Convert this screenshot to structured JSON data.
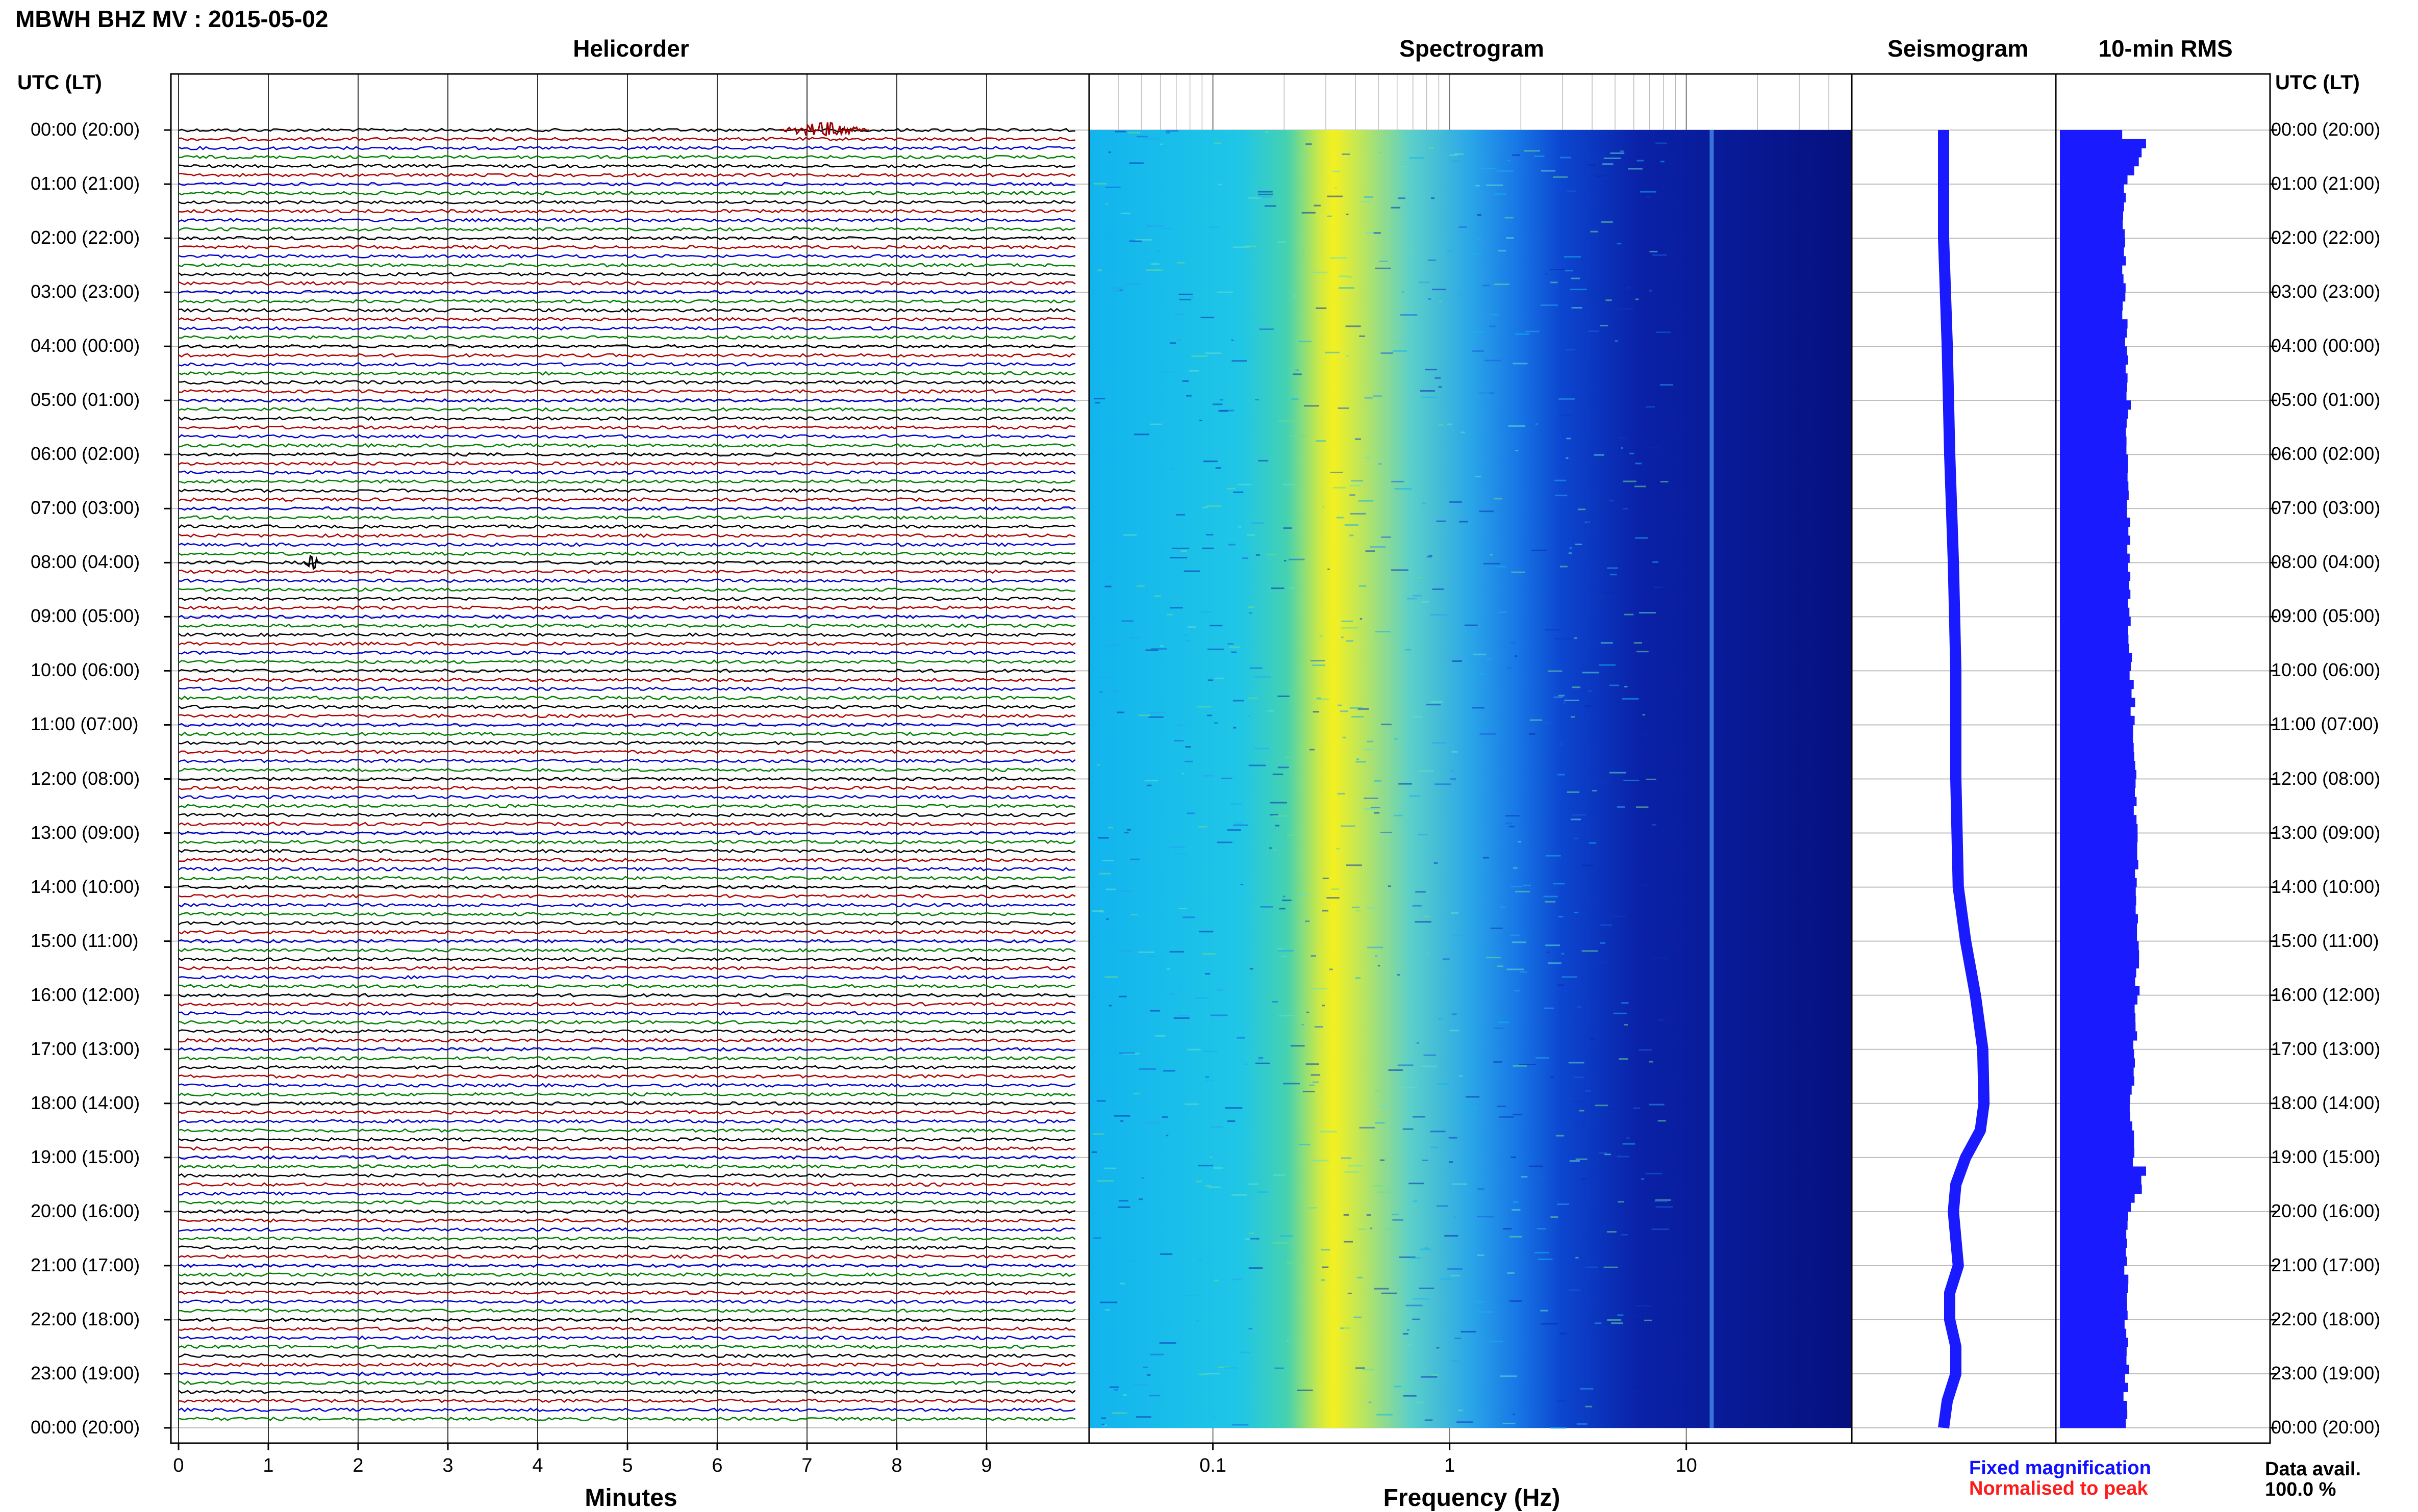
{
  "header": {
    "title": "MBWH BHZ MV : 2015-05-02"
  },
  "panels": {
    "helicorder": "Helicorder",
    "spectrogram": "Spectrogram",
    "seismogram": "Seismogram",
    "rms": "10-min RMS"
  },
  "time_axis": {
    "heading_left": "UTC (LT)",
    "heading_right": "UTC (LT)",
    "labels": [
      "00:00 (20:00)",
      "01:00 (21:00)",
      "02:00 (22:00)",
      "03:00 (23:00)",
      "04:00 (00:00)",
      "05:00 (01:00)",
      "06:00 (02:00)",
      "07:00 (03:00)",
      "08:00 (04:00)",
      "09:00 (05:00)",
      "10:00 (06:00)",
      "11:00 (07:00)",
      "12:00 (08:00)",
      "13:00 (09:00)",
      "14:00 (10:00)",
      "15:00 (11:00)",
      "16:00 (12:00)",
      "17:00 (13:00)",
      "18:00 (14:00)",
      "19:00 (15:00)",
      "20:00 (16:00)",
      "21:00 (17:00)",
      "22:00 (18:00)",
      "23:00 (19:00)",
      "00:00 (20:00)"
    ]
  },
  "footer": {
    "minutes_label": "Minutes",
    "frequency_label": "Frequency (Hz)",
    "legend_fixed": "Fixed magnification",
    "legend_normalised": "Normalised to peak",
    "data_avail_label": "Data avail.",
    "data_avail_value": "100.0 %"
  },
  "colors": {
    "trace_cycle": [
      "#000000",
      "#b00000",
      "#0000d0",
      "#008000"
    ],
    "seismogram": "#1a1aff",
    "rms_bar": "#1a1aff",
    "spectrogram_low": "#00008b",
    "spectrogram_high": "#ffff00"
  },
  "chart_data": [
    {
      "type": "line",
      "name": "helicorder",
      "xlabel": "Minutes",
      "x_ticks": [
        0,
        1,
        2,
        3,
        4,
        5,
        6,
        7,
        8,
        9
      ],
      "xlim": [
        0,
        10
      ],
      "rows_per_hour": 6,
      "total_rows": 144,
      "color_cycle": [
        "black",
        "red",
        "blue",
        "green"
      ],
      "events": [
        {
          "row": 0,
          "minute_start": 6.7,
          "minute_end": 7.7,
          "color": "darkred"
        },
        {
          "row": 48,
          "minute_start": 1.4,
          "minute_end": 1.6,
          "color": "black"
        }
      ]
    },
    {
      "type": "heatmap",
      "name": "spectrogram",
      "xlabel": "Frequency (Hz)",
      "x_scale": "log",
      "x_ticks": [
        0.1,
        1,
        10
      ],
      "xlim": [
        0.03,
        50
      ],
      "peak_band_hz": [
        0.2,
        0.3
      ],
      "narrow_line_hz": 12.8
    },
    {
      "type": "line",
      "name": "seismogram",
      "hours": [
        0,
        2,
        4,
        6,
        8,
        10,
        12,
        14,
        15,
        16,
        17,
        18,
        18.5,
        19,
        19.5,
        20,
        20.5,
        21,
        21.5,
        22,
        22.5,
        23,
        23.5,
        24
      ],
      "offset": [
        0,
        0,
        0.03,
        0.05,
        0.08,
        0.1,
        0.1,
        0.12,
        0.18,
        0.26,
        0.32,
        0.33,
        0.3,
        0.18,
        0.1,
        0.08,
        0.1,
        0.12,
        0.05,
        0.05,
        0.1,
        0.1,
        0.03,
        0
      ]
    },
    {
      "type": "bar",
      "name": "10-min RMS",
      "hours": [
        0,
        0.17,
        1,
        2,
        3,
        4,
        5,
        6,
        7,
        8,
        9,
        10,
        11,
        12,
        13,
        14,
        15,
        16,
        17,
        18,
        19,
        19.17,
        20,
        21,
        22,
        23,
        24
      ],
      "values": [
        0.75,
        1.0,
        0.75,
        0.75,
        0.75,
        0.77,
        0.8,
        0.78,
        0.8,
        0.82,
        0.82,
        0.84,
        0.86,
        0.88,
        0.9,
        0.9,
        0.92,
        0.9,
        0.86,
        0.82,
        0.85,
        1.02,
        0.8,
        0.78,
        0.78,
        0.78,
        0.75
      ]
    }
  ]
}
